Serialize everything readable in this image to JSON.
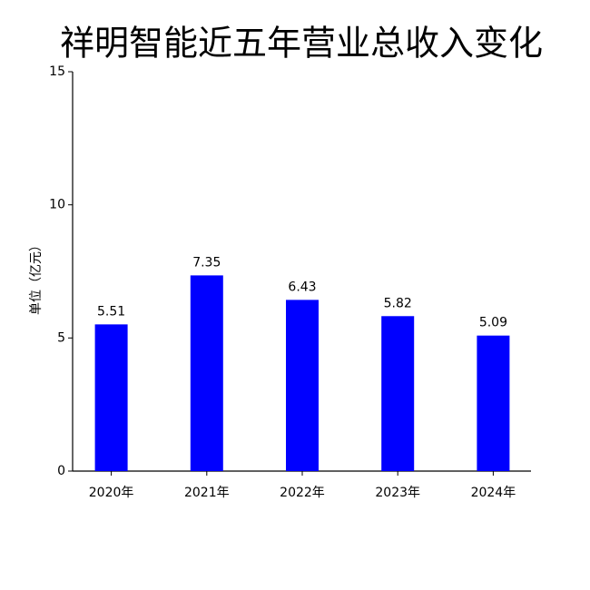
{
  "chart_data": {
    "type": "bar",
    "title": "祥明智能近五年营业总收入变化",
    "y_label": "单位（亿元）",
    "categories": [
      "2020年",
      "2021年",
      "2022年",
      "2023年",
      "2024年"
    ],
    "values": [
      5.51,
      7.35,
      6.43,
      5.82,
      5.09
    ],
    "color": "#0000ff",
    "ylim": [
      0,
      15
    ],
    "yticks": [
      0,
      5,
      10,
      15
    ],
    "grid": false
  }
}
